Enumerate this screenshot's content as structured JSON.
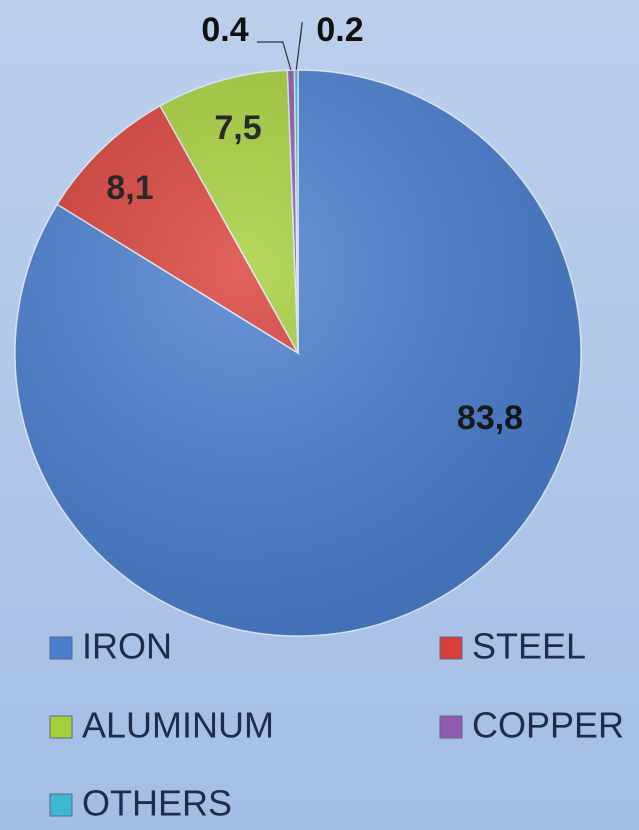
{
  "chart_data": {
    "type": "pie",
    "categories": [
      "IRON",
      "STEEL",
      "ALUMINUM",
      "COPPER",
      "OTHERS"
    ],
    "values": [
      83.8,
      8.1,
      7.5,
      0.4,
      0.2
    ],
    "value_labels": [
      "83,8",
      "8,1",
      "7,5",
      "0.4",
      "0.2"
    ],
    "colors": [
      "#4a7fd0",
      "#d9403a",
      "#a6cf3c",
      "#8e5bb0",
      "#3cb8d0"
    ],
    "legend": "bottom"
  }
}
